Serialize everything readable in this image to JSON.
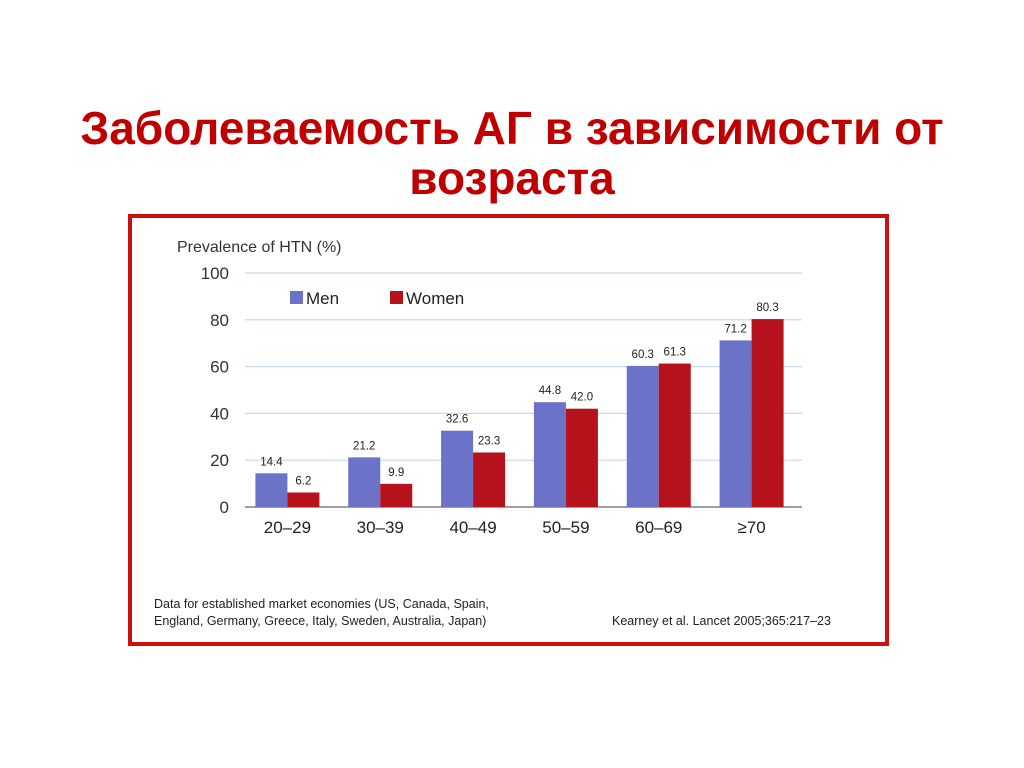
{
  "title": {
    "line1": "Заболеваемость АГ в зависимости от",
    "line2": "возраста"
  },
  "colors": {
    "title": "#c00000",
    "frame": "#cc1010",
    "men": "#6b72c8",
    "women": "#b5121b",
    "grid": "#c7d9e8"
  },
  "chart_data": {
    "type": "bar",
    "ylabel": "Prevalence of HTN (%)",
    "xlabel": "",
    "ylim": [
      0,
      100
    ],
    "yticks": [
      0,
      20,
      40,
      60,
      80,
      100
    ],
    "grid": true,
    "legend_position": "top-left",
    "categories": [
      "20–29",
      "30–39",
      "40–49",
      "50–59",
      "60–69",
      "≥70"
    ],
    "series": [
      {
        "name": "Men",
        "values": [
          14.4,
          21.2,
          32.6,
          44.8,
          60.3,
          71.2
        ],
        "labels": [
          "14.4",
          "21.2",
          "32.6",
          "44.8",
          "60.3",
          "71.2"
        ],
        "color": "#6b72c8"
      },
      {
        "name": "Women",
        "values": [
          6.2,
          9.9,
          23.3,
          42.0,
          61.3,
          80.3
        ],
        "labels": [
          "6.2",
          "9.9",
          "23.3",
          "42.0",
          "61.3",
          "80.3"
        ],
        "color": "#b5121b"
      }
    ]
  },
  "footnote": {
    "line1": "Data for established market economies (US, Canada, Spain,",
    "line2": "England, Germany, Greece, Italy, Sweden, Australia, Japan)"
  },
  "citation": "Kearney et al. Lancet 2005;365:217–23"
}
